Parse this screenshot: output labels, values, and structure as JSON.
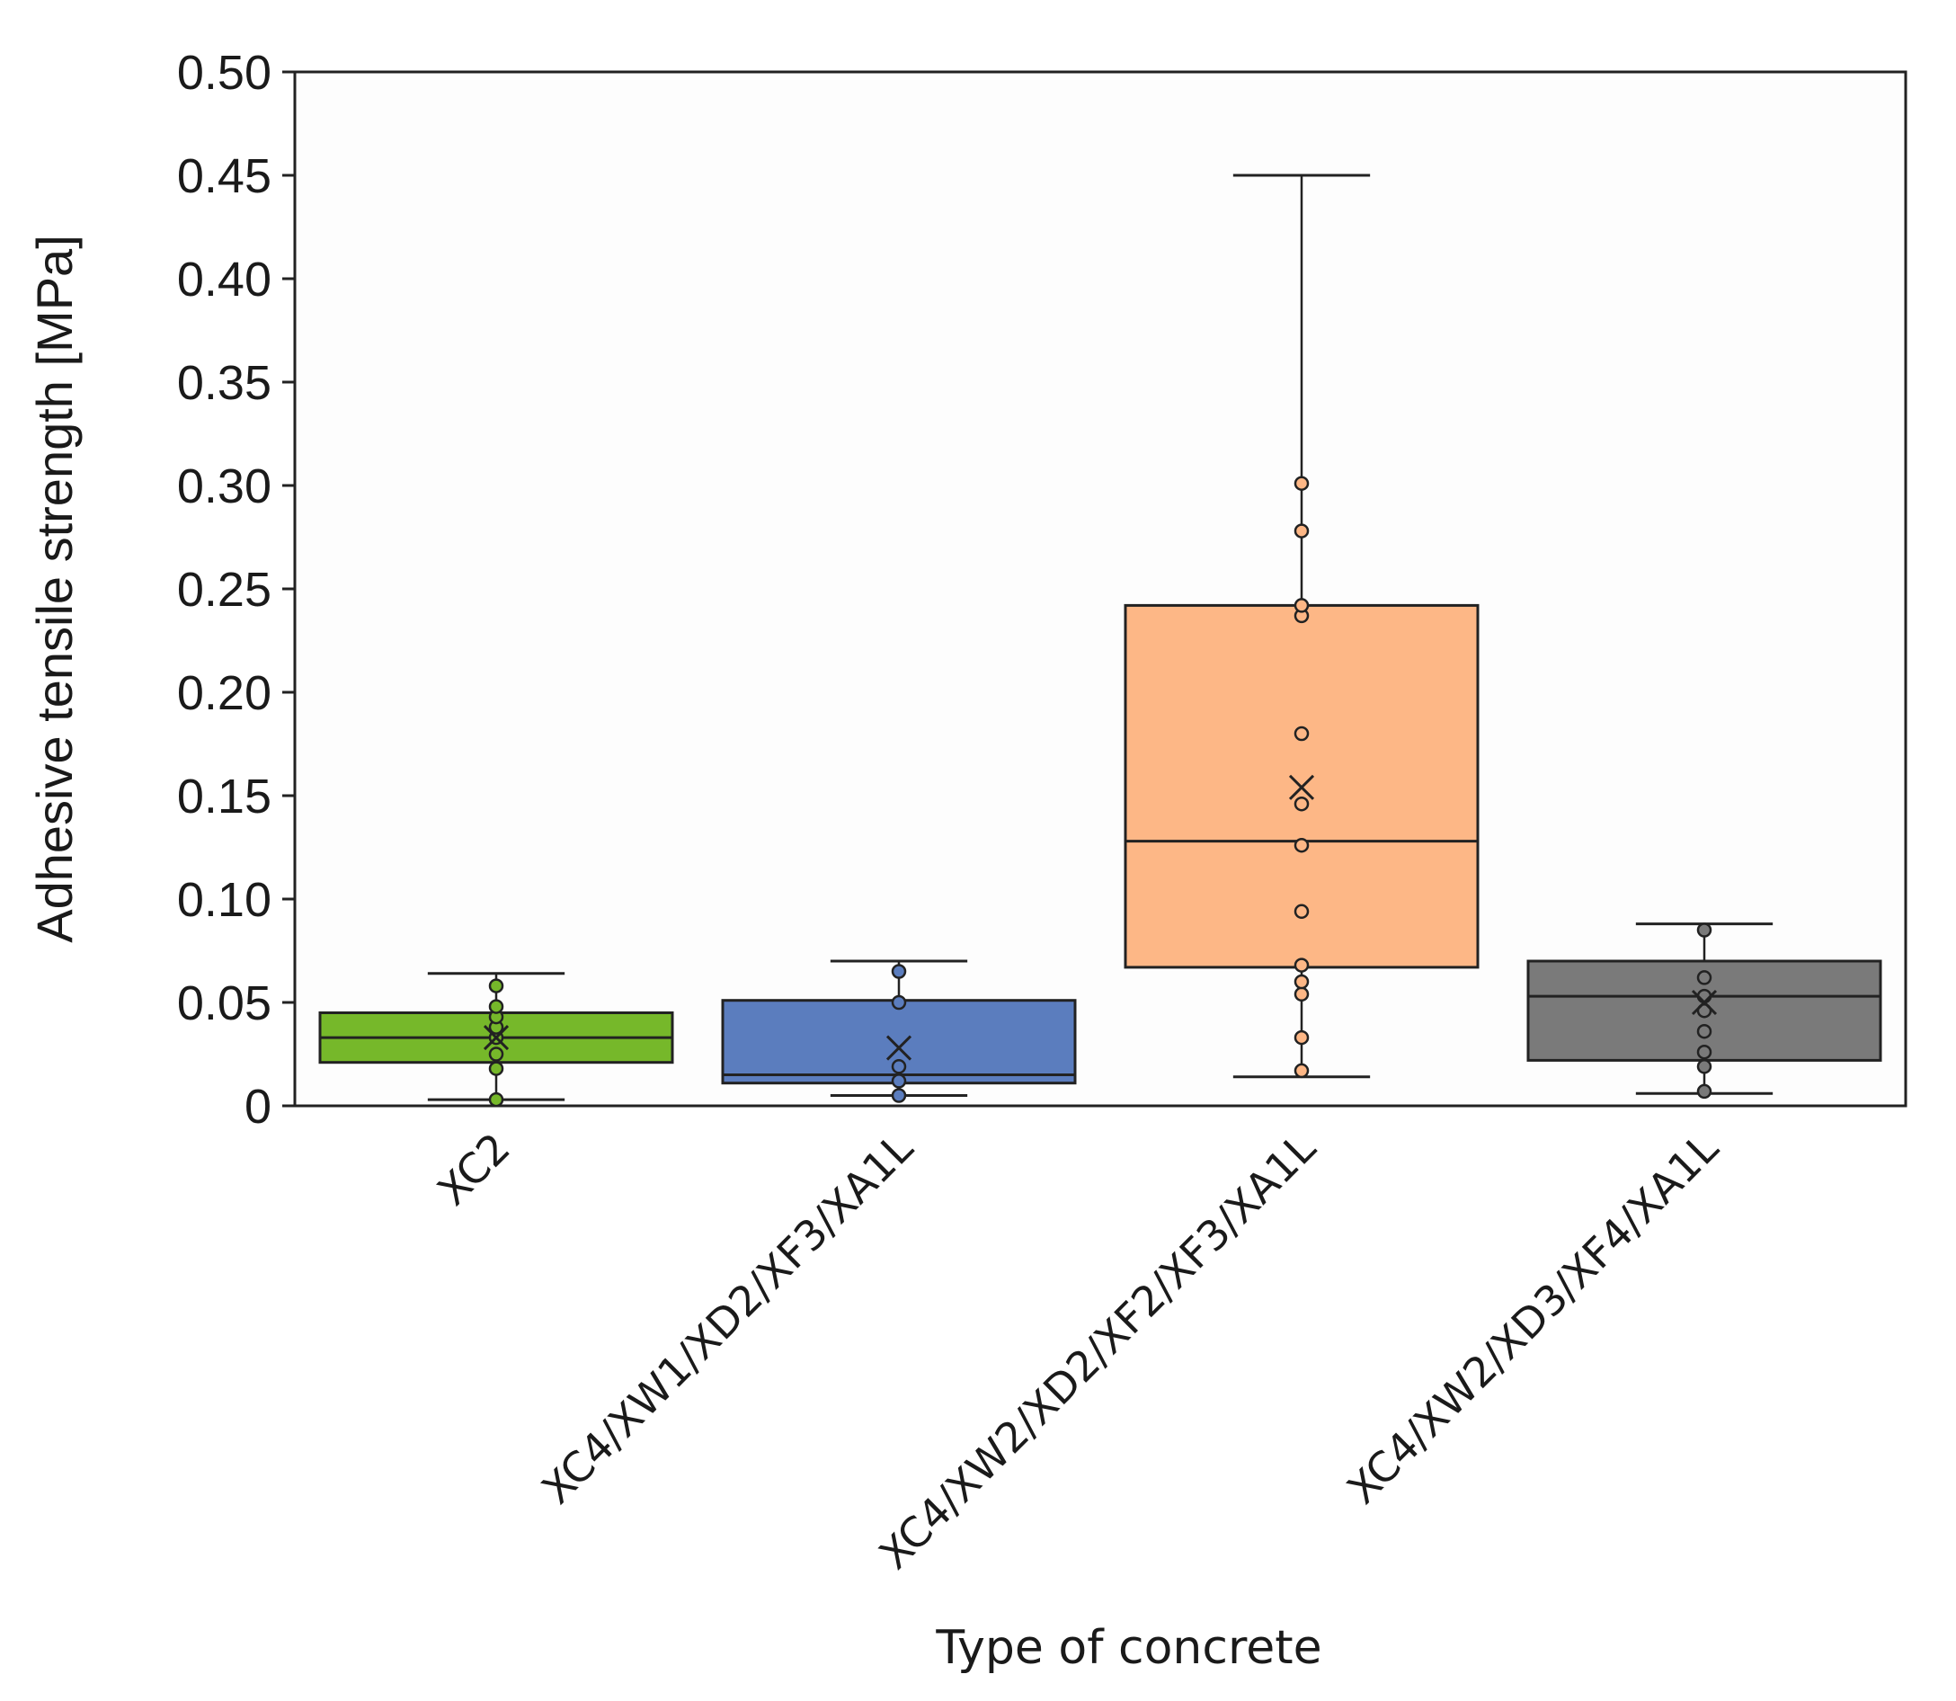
{
  "chart_data": {
    "type": "box",
    "xlabel": "Type of concrete",
    "ylabel": "Adhesive tensile strength [MPa]",
    "ylim": [
      0,
      0.5
    ],
    "yticks": [
      0,
      0.05,
      0.1,
      0.15,
      0.2,
      0.25,
      0.3,
      0.35,
      0.4,
      0.45,
      0.5
    ],
    "ytick_labels": [
      "0",
      "0.05",
      "0.10",
      "0.15",
      "0.20",
      "0.25",
      "0.30",
      "0.35",
      "0.40",
      "0.45",
      "0.50"
    ],
    "grid": false,
    "legend": "none",
    "series": [
      {
        "name": "XC2",
        "color": "#76b82a",
        "whisker_low": 0.003,
        "q1": 0.021,
        "median": 0.033,
        "q3": 0.045,
        "whisker_high": 0.064,
        "mean": 0.033,
        "points": [
          0.003,
          0.018,
          0.025,
          0.033,
          0.038,
          0.043,
          0.048,
          0.058
        ]
      },
      {
        "name": "XC4/XW1/XD2/XF3/XA1L",
        "color": "#5b7dbe",
        "whisker_low": 0.005,
        "q1": 0.011,
        "median": 0.015,
        "q3": 0.051,
        "whisker_high": 0.07,
        "mean": 0.028,
        "points": [
          0.005,
          0.012,
          0.019,
          0.05,
          0.065
        ]
      },
      {
        "name": "XC4/XW2/XD2/XF2/XF3/XA1L",
        "color": "#fdb786",
        "whisker_low": 0.014,
        "q1": 0.067,
        "median": 0.128,
        "q3": 0.242,
        "whisker_high": 0.45,
        "mean": 0.154,
        "points": [
          0.017,
          0.033,
          0.054,
          0.06,
          0.068,
          0.094,
          0.126,
          0.146,
          0.18,
          0.237,
          0.242,
          0.278,
          0.301
        ]
      },
      {
        "name": "XC4/XW2/XD3/XF4/XA1L",
        "color": "#7a7a7a",
        "whisker_low": 0.006,
        "q1": 0.022,
        "median": 0.053,
        "q3": 0.07,
        "whisker_high": 0.088,
        "mean": 0.05,
        "points": [
          0.007,
          0.019,
          0.026,
          0.036,
          0.046,
          0.053,
          0.062,
          0.085
        ]
      }
    ]
  }
}
